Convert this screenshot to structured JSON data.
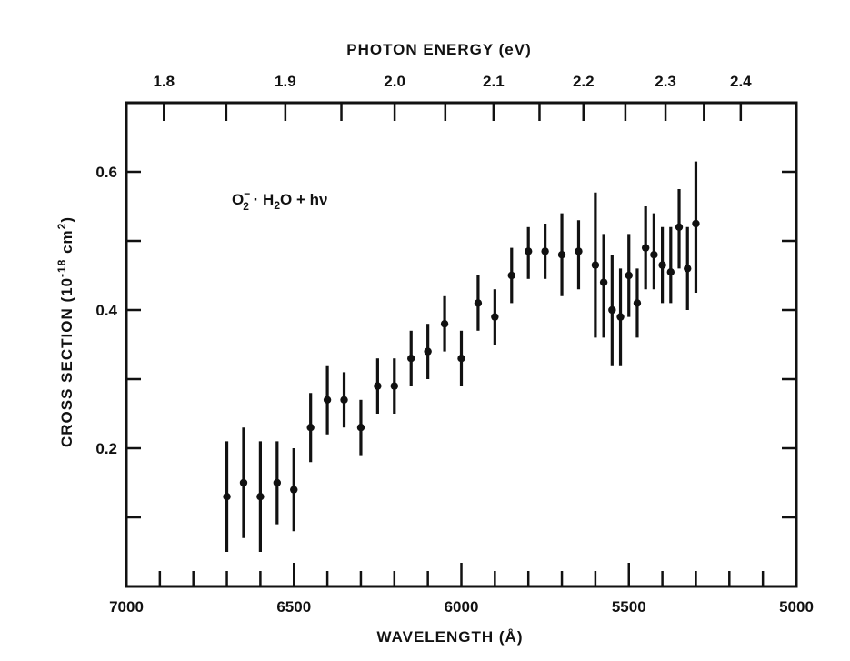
{
  "chart_data": {
    "type": "scatter",
    "title": "",
    "xlabel": "WAVELENGTH (Å)",
    "x2label": "PHOTON ENERGY (eV)",
    "ylabel_parts": {
      "main": "CROSS SECTION (10",
      "exp": "-18",
      "unit": " cm",
      "unitexp": "2",
      "close": ")"
    },
    "annotation": {
      "o": "O",
      "o_sup": "−",
      "o_sub": "2",
      "rest": " · H",
      "h_sub": "2",
      "tail": "O + hν"
    },
    "xlim": [
      7000,
      5000
    ],
    "ylim": [
      0,
      0.7
    ],
    "x_ticklabels": [
      "7000",
      "6500",
      "6000",
      "5500",
      "5000"
    ],
    "x_ticks_major": [
      7000,
      6500,
      6000,
      5500,
      5000
    ],
    "x_ticks_minor": [
      6900,
      6800,
      6700,
      6600,
      6400,
      6300,
      6200,
      6100,
      5900,
      5800,
      5700,
      5600,
      5400,
      5300,
      5200,
      5100
    ],
    "y_ticklabels": [
      "0.2",
      "0.4",
      "0.6"
    ],
    "y_ticks": [
      0.1,
      0.2,
      0.3,
      0.4,
      0.5,
      0.6
    ],
    "x2_ticklabels": [
      "1.8",
      "1.9",
      "2.0",
      "2.1",
      "2.2",
      "2.3",
      "2.4"
    ],
    "x2_ticks": [
      1.8,
      1.85,
      1.9,
      1.95,
      2.0,
      2.05,
      2.1,
      2.15,
      2.2,
      2.25,
      2.3,
      2.35,
      2.4
    ],
    "x2_ticks_labeled": [
      1.8,
      1.9,
      2.0,
      2.1,
      2.2,
      2.3,
      2.4
    ],
    "points": [
      {
        "x": 6700,
        "y": 0.13,
        "lo": 0.05,
        "hi": 0.21
      },
      {
        "x": 6650,
        "y": 0.15,
        "lo": 0.07,
        "hi": 0.23
      },
      {
        "x": 6600,
        "y": 0.13,
        "lo": 0.05,
        "hi": 0.21
      },
      {
        "x": 6550,
        "y": 0.15,
        "lo": 0.09,
        "hi": 0.21
      },
      {
        "x": 6500,
        "y": 0.14,
        "lo": 0.08,
        "hi": 0.2
      },
      {
        "x": 6450,
        "y": 0.23,
        "lo": 0.18,
        "hi": 0.28
      },
      {
        "x": 6400,
        "y": 0.27,
        "lo": 0.22,
        "hi": 0.32
      },
      {
        "x": 6350,
        "y": 0.27,
        "lo": 0.23,
        "hi": 0.31
      },
      {
        "x": 6300,
        "y": 0.23,
        "lo": 0.19,
        "hi": 0.27
      },
      {
        "x": 6250,
        "y": 0.29,
        "lo": 0.25,
        "hi": 0.33
      },
      {
        "x": 6200,
        "y": 0.29,
        "lo": 0.25,
        "hi": 0.33
      },
      {
        "x": 6150,
        "y": 0.33,
        "lo": 0.29,
        "hi": 0.37
      },
      {
        "x": 6100,
        "y": 0.34,
        "lo": 0.3,
        "hi": 0.38
      },
      {
        "x": 6050,
        "y": 0.38,
        "lo": 0.34,
        "hi": 0.42
      },
      {
        "x": 6000,
        "y": 0.33,
        "lo": 0.29,
        "hi": 0.37
      },
      {
        "x": 5950,
        "y": 0.41,
        "lo": 0.37,
        "hi": 0.45
      },
      {
        "x": 5900,
        "y": 0.39,
        "lo": 0.35,
        "hi": 0.43
      },
      {
        "x": 5850,
        "y": 0.45,
        "lo": 0.41,
        "hi": 0.49
      },
      {
        "x": 5800,
        "y": 0.485,
        "lo": 0.445,
        "hi": 0.52
      },
      {
        "x": 5750,
        "y": 0.485,
        "lo": 0.445,
        "hi": 0.525
      },
      {
        "x": 5700,
        "y": 0.48,
        "lo": 0.42,
        "hi": 0.54
      },
      {
        "x": 5650,
        "y": 0.485,
        "lo": 0.43,
        "hi": 0.53
      },
      {
        "x": 5600,
        "y": 0.465,
        "lo": 0.36,
        "hi": 0.57
      },
      {
        "x": 5575,
        "y": 0.44,
        "lo": 0.36,
        "hi": 0.51
      },
      {
        "x": 5550,
        "y": 0.4,
        "lo": 0.32,
        "hi": 0.48
      },
      {
        "x": 5525,
        "y": 0.39,
        "lo": 0.32,
        "hi": 0.46
      },
      {
        "x": 5500,
        "y": 0.45,
        "lo": 0.39,
        "hi": 0.51
      },
      {
        "x": 5475,
        "y": 0.41,
        "lo": 0.36,
        "hi": 0.46
      },
      {
        "x": 5450,
        "y": 0.49,
        "lo": 0.43,
        "hi": 0.55
      },
      {
        "x": 5425,
        "y": 0.48,
        "lo": 0.43,
        "hi": 0.54
      },
      {
        "x": 5400,
        "y": 0.465,
        "lo": 0.41,
        "hi": 0.52
      },
      {
        "x": 5375,
        "y": 0.455,
        "lo": 0.41,
        "hi": 0.52
      },
      {
        "x": 5350,
        "y": 0.52,
        "lo": 0.46,
        "hi": 0.575
      },
      {
        "x": 5325,
        "y": 0.46,
        "lo": 0.4,
        "hi": 0.52
      },
      {
        "x": 5300,
        "y": 0.525,
        "lo": 0.425,
        "hi": 0.615
      }
    ],
    "grid": false,
    "legend": "none"
  }
}
